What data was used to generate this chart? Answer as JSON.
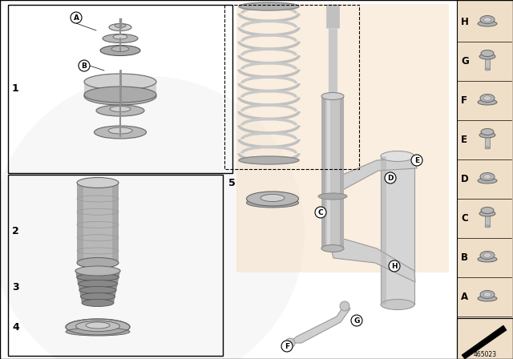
{
  "bg_color": "#ffffff",
  "right_panel_bg": "#f0dfc8",
  "watermark_color": "#e8e8e8",
  "border_color": "#000000",
  "catalog_number": "465023",
  "right_panel_labels": [
    "H",
    "G",
    "F",
    "E",
    "D",
    "C",
    "B",
    "A"
  ],
  "part_color_light": "#d0d0d0",
  "part_color_mid": "#b8b8b8",
  "part_color_dark": "#909090",
  "spring_color": "#c8c8c8",
  "shock_color": "#c5c5c5",
  "line_color": "#333333",
  "peach_bg": "#f5dfc0"
}
